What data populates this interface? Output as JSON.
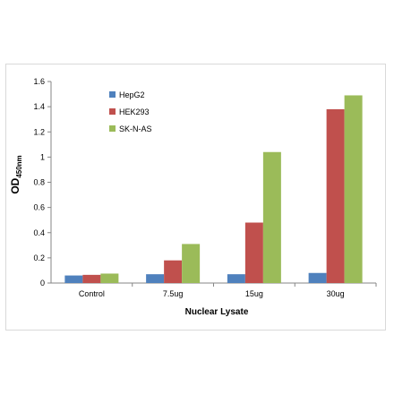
{
  "chart_data": {
    "type": "bar",
    "categories": [
      "Control",
      "7.5ug",
      "15ug",
      "30ug"
    ],
    "series": [
      {
        "name": "HepG2",
        "values": [
          0.06,
          0.07,
          0.07,
          0.08
        ],
        "color": "#4f81bd"
      },
      {
        "name": "HEK293",
        "values": [
          0.065,
          0.18,
          0.48,
          1.38
        ],
        "color": "#c0504d"
      },
      {
        "name": "SK-N-AS",
        "values": [
          0.075,
          0.31,
          1.04,
          1.49
        ],
        "color": "#9bbb59"
      }
    ],
    "xlabel": "Nuclear Lysate",
    "ylabel": "OD",
    "ylabel_sub": "450nm",
    "ylim": [
      0,
      1.6
    ],
    "yticks": [
      "0",
      "0.2",
      "0.4",
      "0.6",
      "0.8",
      "1",
      "1.2",
      "1.4",
      "1.6"
    ],
    "grid": false,
    "legend_position": "top-left"
  }
}
